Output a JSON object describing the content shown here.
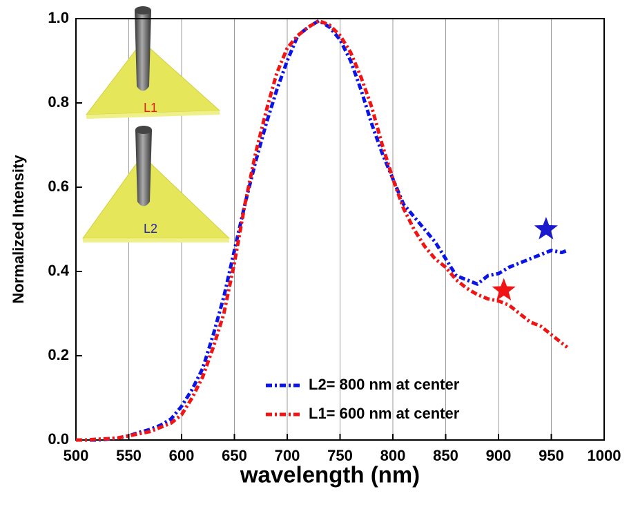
{
  "chart_data": {
    "type": "line",
    "xlabel": "wavelength (nm)",
    "ylabel": "Normalized Intensity",
    "xlim": [
      500,
      1000
    ],
    "ylim": [
      0,
      1
    ],
    "xticks": [
      500,
      550,
      600,
      650,
      700,
      750,
      800,
      850,
      900,
      950,
      1000
    ],
    "yticks": [
      {
        "value": 0,
        "label": "0.0"
      },
      0.2,
      0.4,
      0.6,
      0.8,
      {
        "value": 1,
        "label": "1.0"
      }
    ],
    "grid": true,
    "legend": "lower center",
    "x": [
      500,
      510,
      520,
      530,
      540,
      550,
      560,
      570,
      580,
      590,
      600,
      610,
      620,
      630,
      640,
      650,
      660,
      670,
      680,
      690,
      700,
      710,
      720,
      730,
      740,
      750,
      760,
      770,
      780,
      790,
      800,
      810,
      820,
      830,
      840,
      850,
      860,
      870,
      880,
      890,
      900,
      910,
      920,
      930,
      940,
      950,
      960,
      965
    ],
    "series": [
      {
        "name": "L2= 800 nm at center",
        "color": "#0a14e6",
        "values": [
          0,
          0,
          0,
          0.002,
          0.005,
          0.01,
          0.018,
          0.025,
          0.035,
          0.05,
          0.08,
          0.12,
          0.17,
          0.25,
          0.34,
          0.45,
          0.56,
          0.66,
          0.75,
          0.83,
          0.9,
          0.96,
          0.98,
          0.995,
          0.98,
          0.95,
          0.9,
          0.83,
          0.75,
          0.68,
          0.62,
          0.56,
          0.53,
          0.5,
          0.47,
          0.43,
          0.39,
          0.38,
          0.37,
          0.39,
          0.395,
          0.41,
          0.42,
          0.43,
          0.44,
          0.45,
          0.445,
          0.45
        ]
      },
      {
        "name": "L1= 600 nm at center",
        "color": "#f01414",
        "values": [
          0,
          0,
          0.002,
          0.003,
          0.005,
          0.01,
          0.015,
          0.02,
          0.03,
          0.04,
          0.06,
          0.1,
          0.15,
          0.22,
          0.3,
          0.42,
          0.56,
          0.68,
          0.78,
          0.87,
          0.93,
          0.96,
          0.98,
          0.995,
          0.985,
          0.96,
          0.92,
          0.86,
          0.79,
          0.7,
          0.62,
          0.55,
          0.5,
          0.46,
          0.43,
          0.41,
          0.38,
          0.36,
          0.345,
          0.335,
          0.33,
          0.32,
          0.3,
          0.28,
          0.27,
          0.25,
          0.23,
          0.22
        ]
      }
    ],
    "stars": [
      {
        "x": 945,
        "y": 0.5,
        "color": "#1a1acc"
      },
      {
        "x": 905,
        "y": 0.355,
        "color": "#f01414"
      }
    ],
    "inset_labels": [
      "L1",
      "L2"
    ]
  }
}
